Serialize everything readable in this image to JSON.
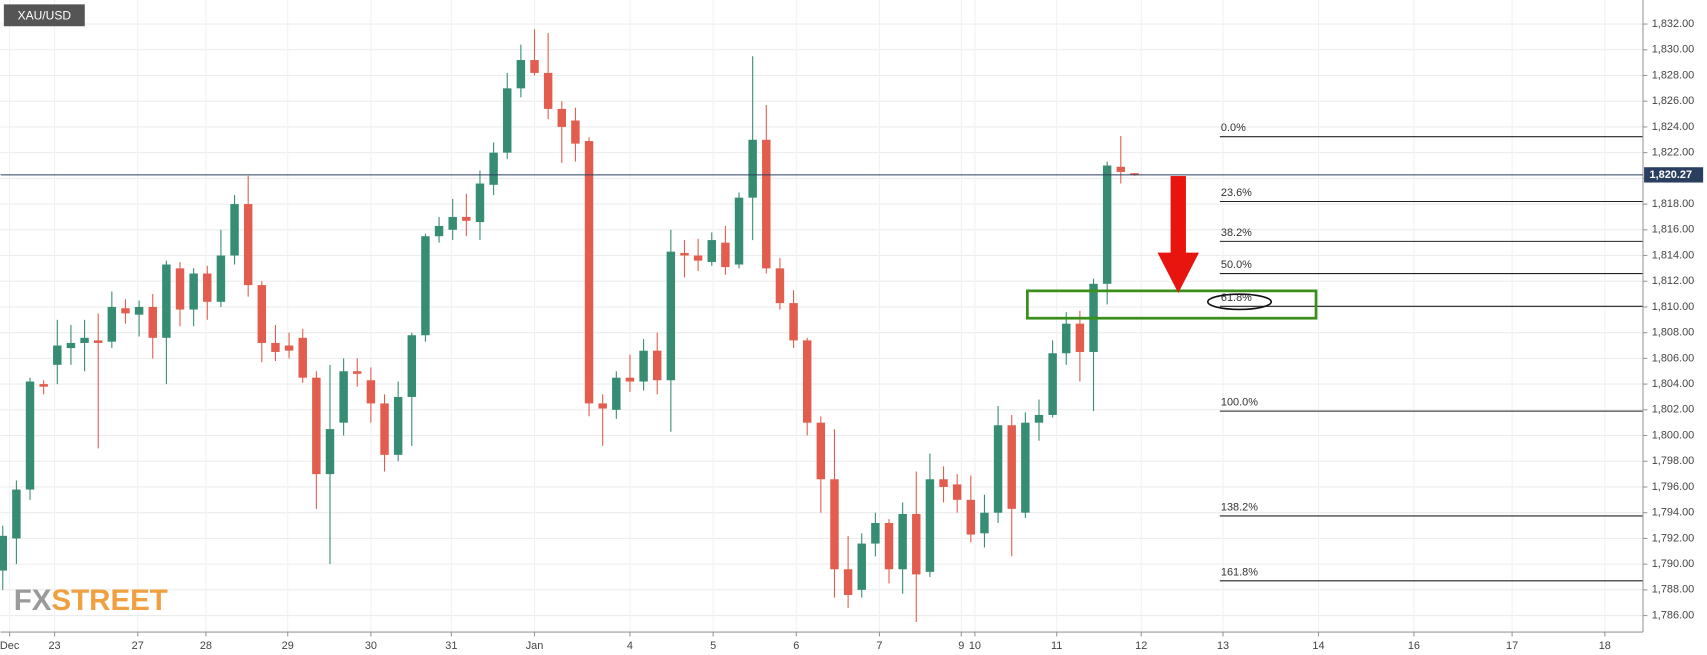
{
  "chart_data": {
    "type": "candlestick",
    "symbol": "XAU/USD",
    "watermark": [
      "FX",
      "STREET"
    ],
    "up_color": "#378d74",
    "down_color": "#e35d4e",
    "grid": true,
    "ylim": [
      1784.72,
      1833.87
    ],
    "xlim": [
      -0.16,
      120.3
    ],
    "yticks": [
      {
        "value": 1786,
        "label": "1,786.00"
      },
      {
        "value": 1788,
        "label": "1,788.00"
      },
      {
        "value": 1790,
        "label": "1,790.00"
      },
      {
        "value": 1792,
        "label": "1,792.00"
      },
      {
        "value": 1794,
        "label": "1,794.00"
      },
      {
        "value": 1796,
        "label": "1,796.00"
      },
      {
        "value": 1798,
        "label": "1,798.00"
      },
      {
        "value": 1800,
        "label": "1,800.00"
      },
      {
        "value": 1802,
        "label": "1,802.00"
      },
      {
        "value": 1804,
        "label": "1,804.00"
      },
      {
        "value": 1806,
        "label": "1,806.00"
      },
      {
        "value": 1808,
        "label": "1,808.00"
      },
      {
        "value": 1810,
        "label": "1,810.00"
      },
      {
        "value": 1812,
        "label": "1,812.00"
      },
      {
        "value": 1814,
        "label": "1,814.00"
      },
      {
        "value": 1816,
        "label": "1,816.00"
      },
      {
        "value": 1818,
        "label": "1,818.00"
      },
      {
        "value": 1820,
        "label": "1,820.00"
      },
      {
        "value": 1822,
        "label": "1,822.00"
      },
      {
        "value": 1824,
        "label": "1,824.00"
      },
      {
        "value": 1826,
        "label": "1,826.00"
      },
      {
        "value": 1828,
        "label": "1,828.00"
      },
      {
        "value": 1830,
        "label": "1,830.00"
      },
      {
        "value": 1832,
        "label": "1,832.00"
      }
    ],
    "xticks": [
      {
        "value": 0.5,
        "label": "Dec"
      },
      {
        "value": 3.8,
        "label": "23"
      },
      {
        "value": 9.9,
        "label": "27"
      },
      {
        "value": 14.9,
        "label": "28"
      },
      {
        "value": 20.9,
        "label": "29"
      },
      {
        "value": 27,
        "label": "30"
      },
      {
        "value": 32.9,
        "label": "31"
      },
      {
        "value": 39,
        "label": "Jan"
      },
      {
        "value": 46,
        "label": "4"
      },
      {
        "value": 52.1,
        "label": "5"
      },
      {
        "value": 58.2,
        "label": "6"
      },
      {
        "value": 64.3,
        "label": "7"
      },
      {
        "value": 70.3,
        "label": "9"
      },
      {
        "value": 71.3,
        "label": "10"
      },
      {
        "value": 77.3,
        "label": "11"
      },
      {
        "value": 83.5,
        "label": "12"
      },
      {
        "value": 89.5,
        "label": "13"
      },
      {
        "value": 96.5,
        "label": "14"
      },
      {
        "value": 103.5,
        "label": "16"
      },
      {
        "value": 110.7,
        "label": "17"
      },
      {
        "value": 117.5,
        "label": "18"
      }
    ],
    "last_price": {
      "value": 1820.27,
      "label": "1,820.27"
    },
    "fibonacci": [
      {
        "label": "0.0%",
        "value": 1823.24
      },
      {
        "label": "23.6%",
        "value": 1818.2
      },
      {
        "label": "38.2%",
        "value": 1815.1
      },
      {
        "label": "50.0%",
        "value": 1812.6
      },
      {
        "label": "61.8%",
        "value": 1810.05
      },
      {
        "label": "100.0%",
        "value": 1801.9
      },
      {
        "label": "138.2%",
        "value": 1793.75
      },
      {
        "label": "161.8%",
        "value": 1788.7
      }
    ],
    "ohlc": [
      [
        1789.5,
        1793,
        1788,
        1792.2
      ],
      [
        1792,
        1796.5,
        1790,
        1795.8
      ],
      [
        1795.8,
        1804.5,
        1795,
        1804.2
      ],
      [
        1804,
        1804.3,
        1803.2,
        1803.8
      ],
      [
        1805.5,
        1809,
        1804,
        1807
      ],
      [
        1806.8,
        1808.6,
        1805.5,
        1807.2
      ],
      [
        1807.2,
        1809,
        1805,
        1807.6
      ],
      [
        1807.4,
        1809.5,
        1799,
        1807.2
      ],
      [
        1807.3,
        1811.2,
        1806.8,
        1810
      ],
      [
        1809.9,
        1810.6,
        1808.7,
        1809.5
      ],
      [
        1809.4,
        1810.5,
        1807.7,
        1810
      ],
      [
        1810,
        1811,
        1806,
        1807.6
      ],
      [
        1807.6,
        1813.6,
        1804,
        1813.3
      ],
      [
        1813,
        1813.5,
        1808.5,
        1809.8
      ],
      [
        1809.8,
        1813,
        1808.5,
        1812.6
      ],
      [
        1812.6,
        1813.2,
        1809,
        1810.4
      ],
      [
        1810.4,
        1816,
        1810,
        1814
      ],
      [
        1814,
        1818.7,
        1813.3,
        1818
      ],
      [
        1818,
        1820.2,
        1810.8,
        1811.7
      ],
      [
        1811.7,
        1812,
        1805.7,
        1807.2
      ],
      [
        1807.2,
        1808.6,
        1805.8,
        1806.5
      ],
      [
        1807,
        1808,
        1806,
        1806.6
      ],
      [
        1807.6,
        1808.3,
        1804.1,
        1804.5
      ],
      [
        1804.5,
        1805,
        1794.3,
        1797
      ],
      [
        1797,
        1805.5,
        1790,
        1800.5
      ],
      [
        1801,
        1806,
        1800,
        1805
      ],
      [
        1805,
        1806,
        1803.8,
        1804.8
      ],
      [
        1804.3,
        1805.3,
        1801,
        1802.5
      ],
      [
        1802.5,
        1803.2,
        1797.2,
        1798.5
      ],
      [
        1798.5,
        1804.2,
        1798,
        1803
      ],
      [
        1803,
        1808,
        1799.2,
        1807.8
      ],
      [
        1807.8,
        1815.7,
        1807.3,
        1815.5
      ],
      [
        1815.5,
        1817,
        1815,
        1816.3
      ],
      [
        1816,
        1818.4,
        1815.2,
        1817
      ],
      [
        1817,
        1818.8,
        1815.5,
        1816.7
      ],
      [
        1816.6,
        1820.6,
        1815.2,
        1819.6
      ],
      [
        1819.5,
        1822.8,
        1818.7,
        1822
      ],
      [
        1822,
        1828.2,
        1821.5,
        1827
      ],
      [
        1827,
        1830.4,
        1826.3,
        1829.2
      ],
      [
        1829.2,
        1831.6,
        1828,
        1828.2
      ],
      [
        1828.2,
        1831.3,
        1824.6,
        1825.4
      ],
      [
        1825.4,
        1826,
        1821.2,
        1824
      ],
      [
        1824.5,
        1825.5,
        1821.3,
        1822.7
      ],
      [
        1822.9,
        1823.2,
        1801.5,
        1802.5
      ],
      [
        1802.5,
        1803.2,
        1799.2,
        1802.1
      ],
      [
        1802,
        1805,
        1801.3,
        1804.5
      ],
      [
        1804.5,
        1806.3,
        1803.4,
        1804.2
      ],
      [
        1804.2,
        1807.5,
        1803.5,
        1806.6
      ],
      [
        1806.6,
        1808,
        1803.2,
        1804.3
      ],
      [
        1804.3,
        1816,
        1800.3,
        1814.3
      ],
      [
        1814.2,
        1815.2,
        1812.3,
        1814
      ],
      [
        1814,
        1815.3,
        1812.8,
        1813.6
      ],
      [
        1813.5,
        1815.8,
        1813.2,
        1815.2
      ],
      [
        1815,
        1816.3,
        1812.5,
        1813.1
      ],
      [
        1813.3,
        1818.9,
        1813,
        1818.5
      ],
      [
        1818.5,
        1829.5,
        1815.2,
        1823
      ],
      [
        1823,
        1825.7,
        1812.6,
        1813
      ],
      [
        1813,
        1813.8,
        1809.8,
        1810.3
      ],
      [
        1810.3,
        1811.3,
        1806.8,
        1807.4
      ],
      [
        1807.4,
        1807.6,
        1800,
        1801
      ],
      [
        1801,
        1801.5,
        1794,
        1796.6
      ],
      [
        1796.6,
        1800.5,
        1787.4,
        1789.6
      ],
      [
        1789.6,
        1792.2,
        1786.6,
        1787.6
      ],
      [
        1788,
        1792.4,
        1787.4,
        1791.6
      ],
      [
        1791.6,
        1794,
        1790.6,
        1793.2
      ],
      [
        1793.2,
        1793.5,
        1788.5,
        1789.6
      ],
      [
        1789.6,
        1794.8,
        1787.7,
        1793.9
      ],
      [
        1793.9,
        1797.2,
        1785.5,
        1789.2
      ],
      [
        1789.4,
        1798.6,
        1789,
        1796.6
      ],
      [
        1796.6,
        1797.6,
        1794.8,
        1796
      ],
      [
        1796.2,
        1797,
        1794,
        1795
      ],
      [
        1795,
        1796.9,
        1791.7,
        1792.3
      ],
      [
        1792.4,
        1795.4,
        1791.3,
        1794
      ],
      [
        1794,
        1802.3,
        1793.2,
        1800.8
      ],
      [
        1800.8,
        1801.6,
        1790.6,
        1794.3
      ],
      [
        1794,
        1801.8,
        1793.6,
        1801
      ],
      [
        1801,
        1802.8,
        1799.6,
        1801.6
      ],
      [
        1801.6,
        1807.4,
        1801.4,
        1806.4
      ],
      [
        1806.4,
        1809.6,
        1805.5,
        1808.7
      ],
      [
        1808.7,
        1809.7,
        1804.2,
        1806.5
      ],
      [
        1806.5,
        1812.2,
        1801.9,
        1811.8
      ],
      [
        1811.8,
        1821.3,
        1810.2,
        1821
      ],
      [
        1820.9,
        1823.3,
        1819.6,
        1820.5
      ],
      [
        1820.4,
        1820.4,
        1820.2,
        1820.27
      ]
    ]
  }
}
